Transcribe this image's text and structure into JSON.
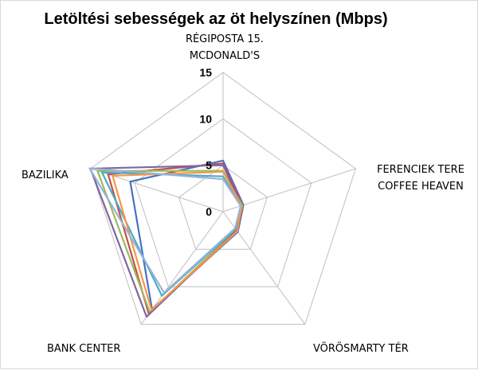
{
  "chart_data": {
    "type": "radar",
    "title": "Letöltési sebességek az öt helyszínen (Mbps)",
    "categories": [
      [
        "RÉGIPOSTA 15.",
        "MCDONALD'S"
      ],
      [
        "FERENCIEK TERE",
        "COFFEE HEAVEN"
      ],
      [
        "VÖRÖSMARTY TÉR"
      ],
      [
        "BANK CENTER"
      ],
      [
        "BAZILIKA"
      ]
    ],
    "rlim": [
      0,
      15
    ],
    "ticks": [
      "0",
      "5",
      "10",
      "15"
    ],
    "tick_values": [
      0,
      5,
      10,
      15
    ],
    "grid": true,
    "legend": "none",
    "series": [
      {
        "color": "#4472c4",
        "values": [
          5.5,
          2.3,
          2.7,
          13.0,
          10.5
        ]
      },
      {
        "color": "#c0504d",
        "values": [
          5.2,
          2.2,
          2.6,
          13.6,
          13.0
        ]
      },
      {
        "color": "#9bbb59",
        "values": [
          4.4,
          2.2,
          2.4,
          13.4,
          14.2
        ]
      },
      {
        "color": "#8064a2",
        "values": [
          5.0,
          2.1,
          2.5,
          14.0,
          15.0
        ]
      },
      {
        "color": "#4bacc6",
        "values": [
          3.8,
          2.0,
          2.3,
          11.2,
          13.7
        ]
      },
      {
        "color": "#f79646",
        "values": [
          4.3,
          2.1,
          2.6,
          13.1,
          12.5
        ]
      },
      {
        "color": "#95b3d7",
        "values": [
          3.5,
          2.0,
          2.2,
          10.8,
          15.1
        ]
      }
    ]
  }
}
